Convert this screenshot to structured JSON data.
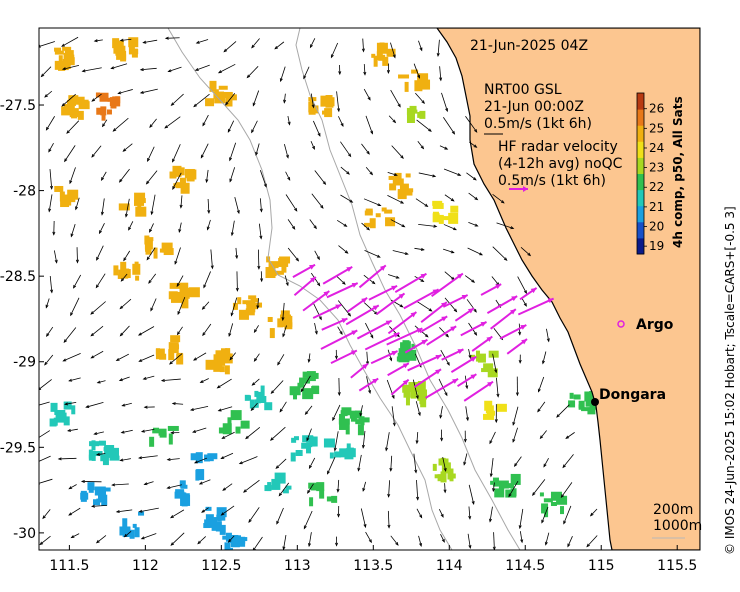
{
  "chart_data": {
    "type": "map",
    "x_ticks": [
      "111.5",
      "112",
      "112.5",
      "113",
      "113.5",
      "114",
      "114.5",
      "115",
      "115.5"
    ],
    "x_tick_values": [
      111.5,
      112,
      112.5,
      113,
      113.5,
      114,
      114.5,
      115,
      115.5
    ],
    "y_ticks": [
      "-27.5",
      "-28",
      "-28.5",
      "-29",
      "-29.5",
      "-30"
    ],
    "y_tick_values": [
      -27.5,
      -28,
      -28.5,
      -29,
      -29.5,
      -30
    ],
    "xlim": [
      111.3,
      115.65
    ],
    "ylim": [
      -30.1,
      -27.05
    ],
    "date_label": "21-Jun-2025 04Z",
    "nrt_lines": [
      "NRT00 GSL",
      "21-Jun 00:00Z",
      "0.5m/s (1kt 6h)"
    ],
    "hf_lines": [
      "HF radar velocity",
      "(4-12h avg) noQC",
      "0.5m/s (1kt 6h)"
    ],
    "places": [
      {
        "name": "Argo",
        "lon": 114.96,
        "lat": -28.83
      },
      {
        "name": "Dongara",
        "lon": 114.93,
        "lat": -29.25
      }
    ],
    "depth_labels": [
      "200m",
      "1000m"
    ],
    "colorbar": {
      "ticks": [
        "19",
        "20",
        "21",
        "22",
        "23",
        "24",
        "25",
        "26"
      ],
      "tick_values": [
        19,
        20,
        21,
        22,
        23,
        24,
        25,
        26
      ],
      "range": [
        18.6,
        26.8
      ],
      "title": "4h comp, p50, All Sats"
    },
    "credit": "© IMOS 24-Jun-2025 15:02 Hobart; Tscale=CARS+[-0.5 3]",
    "colors": {
      "land": "#fcc690",
      "hf_arrow": "#e020e0",
      "model_arrow": "#000000",
      "bathy_line": "#a8a8a8",
      "coast": "#000000"
    }
  }
}
